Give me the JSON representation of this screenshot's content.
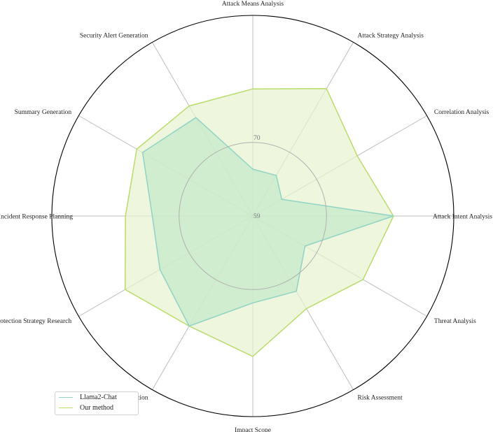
{
  "chart_data": {
    "type": "radar",
    "categories": [
      "Attack Means Analysis",
      "Attack Strategy Analysis",
      "Correlation Analysis",
      "Attack Intent Analysis",
      "Threat Analysis",
      "Risk Assessment",
      "Impact Scope",
      "Trend Prediction",
      "Protection Strategy Research",
      "Incident Response Planning",
      "Summary Generation",
      "Security Alert Generation"
    ],
    "series": [
      {
        "name": "Llama2-Chat",
        "color": "#8fd3c6",
        "fill": "#c5e8c9",
        "values": [
          66,
          66,
          64,
          80,
          68,
          72,
          72,
          78,
          75,
          74,
          78,
          76
        ]
      },
      {
        "name": "Our method",
        "color": "#b9dc6b",
        "fill": "#e7f3ce",
        "values": [
          78,
          81,
          77,
          80,
          78,
          75,
          80,
          78,
          81,
          78,
          79,
          78
        ]
      }
    ],
    "rlim": [
      59,
      89
    ],
    "ticks": [
      {
        "value": 59,
        "label": "59"
      },
      {
        "value": 70,
        "label": "70"
      }
    ],
    "grid": true,
    "legend": "bottom-left"
  }
}
